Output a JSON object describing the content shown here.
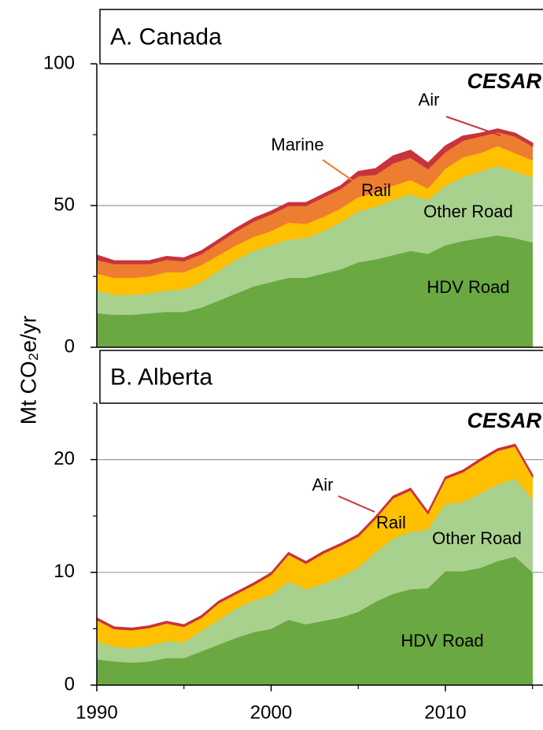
{
  "ylabel": "Mt CO₂e/yr",
  "chart_data": [
    {
      "type": "area",
      "stacked": true,
      "title": "A. Canada",
      "logo": "CESAR",
      "x": [
        1990,
        1991,
        1992,
        1993,
        1994,
        1995,
        1996,
        1997,
        1998,
        1999,
        2000,
        2001,
        2002,
        2003,
        2004,
        2005,
        2006,
        2007,
        2008,
        2009,
        2010,
        2011,
        2012,
        2013,
        2014,
        2015
      ],
      "series": [
        {
          "name": "HDV Road",
          "color": "#6aa842",
          "values": [
            12,
            11.5,
            11.5,
            12,
            12.5,
            12.5,
            14,
            16.5,
            19,
            21.5,
            23,
            24.5,
            24.5,
            26,
            27.5,
            30,
            31,
            32.5,
            34,
            33,
            36,
            37.5,
            38.5,
            39.5,
            38.5,
            37
          ]
        },
        {
          "name": "Other Road",
          "color": "#a9d18e",
          "values": [
            8,
            7,
            7,
            7,
            7.5,
            8,
            9,
            10.5,
            12,
            12.5,
            13,
            13.5,
            14,
            15,
            16.5,
            18,
            18.5,
            19.5,
            20,
            19,
            21,
            22.5,
            23.5,
            24.5,
            23.5,
            23
          ]
        },
        {
          "name": "Rail",
          "color": "#ffc000",
          "values": [
            6,
            6,
            6,
            6,
            6.5,
            6,
            6,
            5.5,
            5,
            5,
            5,
            6,
            5,
            5,
            5,
            5,
            5,
            5,
            5,
            4,
            6,
            7,
            6.5,
            7,
            6.5,
            6
          ]
        },
        {
          "name": "Marine",
          "color": "#ed7d31",
          "values": [
            5,
            5,
            5,
            4.5,
            4.5,
            4,
            4,
            4.5,
            5,
            5.5,
            6,
            6,
            6.5,
            7,
            7,
            7.5,
            6.5,
            8,
            8,
            7,
            6,
            6,
            6,
            5,
            6,
            5
          ]
        },
        {
          "name": "Air",
          "color": "#c8333c",
          "values": [
            1.5,
            1,
            1,
            1,
            1,
            1,
            1,
            1,
            1,
            1,
            1,
            1,
            1,
            1,
            1,
            1.5,
            2,
            2.5,
            2.5,
            2,
            2,
            1.5,
            1,
            1,
            1,
            1
          ]
        }
      ],
      "xlim": [
        1990,
        2015.6
      ],
      "ylim": [
        0,
        100
      ],
      "yticks": [
        0,
        50,
        100
      ],
      "yminor": [
        25,
        75
      ],
      "grid": true
    },
    {
      "type": "area",
      "stacked": true,
      "title": "B. Alberta",
      "logo": "CESAR",
      "x": [
        1990,
        1991,
        1992,
        1993,
        1994,
        1995,
        1996,
        1997,
        1998,
        1999,
        2000,
        2001,
        2002,
        2003,
        2004,
        2005,
        2006,
        2007,
        2008,
        2009,
        2010,
        2011,
        2012,
        2013,
        2014,
        2015
      ],
      "series": [
        {
          "name": "HDV Road",
          "color": "#6aa842",
          "values": [
            2.3,
            2.1,
            2.0,
            2.1,
            2.4,
            2.4,
            3.0,
            3.6,
            4.2,
            4.7,
            5.0,
            5.8,
            5.4,
            5.7,
            6.0,
            6.5,
            7.4,
            8.1,
            8.5,
            8.6,
            10.1,
            10.1,
            10.4,
            11.0,
            11.4,
            10.0
          ]
        },
        {
          "name": "Other Road",
          "color": "#a9d18e",
          "values": [
            1.6,
            1.3,
            1.3,
            1.4,
            1.5,
            1.4,
            1.8,
            2.2,
            2.6,
            2.8,
            3.0,
            3.4,
            3.1,
            3.3,
            3.6,
            3.9,
            4.4,
            4.9,
            5.1,
            5.2,
            6.0,
            6.1,
            6.6,
            6.8,
            6.9,
            6.5
          ]
        },
        {
          "name": "Rail",
          "color": "#ffc000",
          "values": [
            1.9,
            1.6,
            1.6,
            1.6,
            1.6,
            1.4,
            1.2,
            1.5,
            1.3,
            1.4,
            1.8,
            2.4,
            2.3,
            2.7,
            2.8,
            2.8,
            3.0,
            3.6,
            3.7,
            1.4,
            2.2,
            2.7,
            2.9,
            3.0,
            2.9,
            2.0
          ]
        },
        {
          "name": "Air",
          "color": "#c8333c",
          "values": [
            0.15,
            0.15,
            0.15,
            0.15,
            0.15,
            0.15,
            0.15,
            0.15,
            0.15,
            0.15,
            0.15,
            0.15,
            0.15,
            0.15,
            0.15,
            0.15,
            0.15,
            0.15,
            0.15,
            0.15,
            0.15,
            0.15,
            0.15,
            0.15,
            0.15,
            0.15
          ]
        }
      ],
      "xlim": [
        1990,
        2015.6
      ],
      "ylim": [
        0,
        25
      ],
      "yticks": [
        0,
        10,
        20
      ],
      "yminor": [
        5,
        15,
        25
      ],
      "grid": true,
      "xticks": [
        1990,
        2000,
        2010
      ],
      "xminor": [
        1995,
        2005,
        2015
      ]
    }
  ]
}
